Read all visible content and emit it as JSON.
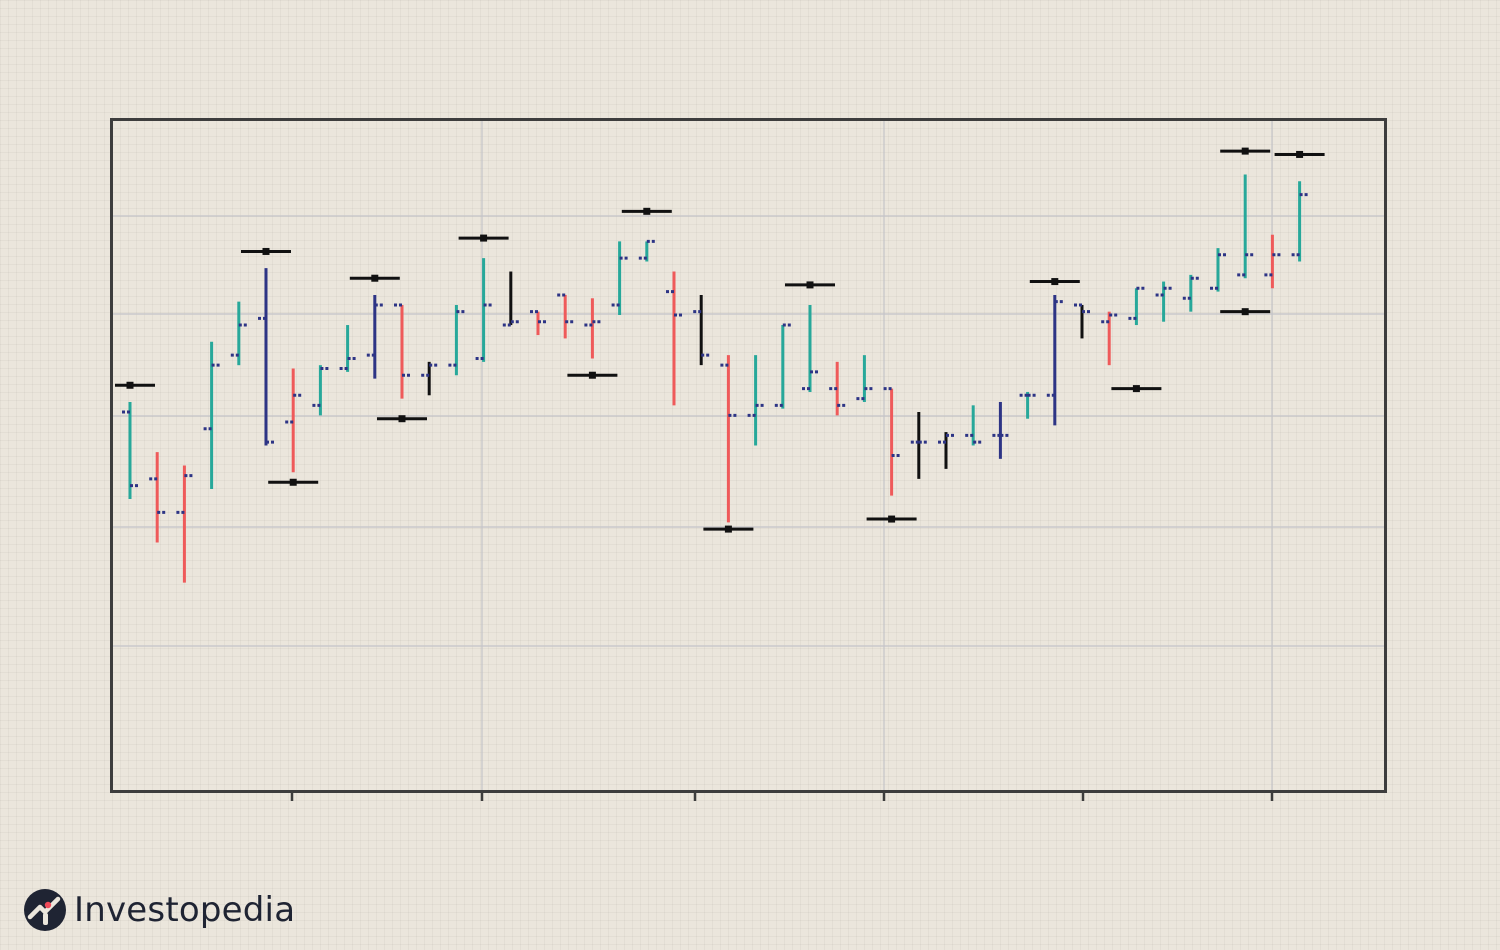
{
  "chart_data": {
    "type": "ohlc",
    "ylim": [
      0,
      100
    ],
    "grid": true,
    "axis_labels_shown": false,
    "colors": {
      "up": "#27a89a",
      "down": "#ef5a5a",
      "neutral": "#2d3485",
      "swing": "#111111",
      "grid": "#c4c4c8",
      "frame": "#3d3d3d"
    },
    "bars": [
      {
        "open": 56.5,
        "high": 58.0,
        "low": 43.5,
        "close": 45.5,
        "color": "up"
      },
      {
        "open": 46.5,
        "high": 50.5,
        "low": 37.0,
        "close": 41.5,
        "color": "down"
      },
      {
        "open": 41.5,
        "high": 48.5,
        "low": 31.0,
        "close": 47.0,
        "color": "down"
      },
      {
        "open": 54.0,
        "high": 67.0,
        "low": 45.0,
        "close": 63.5,
        "color": "up"
      },
      {
        "open": 65.0,
        "high": 73.0,
        "low": 63.5,
        "close": 69.5,
        "color": "up"
      },
      {
        "open": 70.5,
        "high": 78.0,
        "low": 51.5,
        "close": 52.0,
        "color": "neutral"
      },
      {
        "open": 55.0,
        "high": 63.0,
        "low": 47.5,
        "close": 59.0,
        "color": "down"
      },
      {
        "open": 57.5,
        "high": 63.5,
        "low": 56.0,
        "close": 63.0,
        "color": "up"
      },
      {
        "open": 63.0,
        "high": 69.5,
        "low": 62.5,
        "close": 64.5,
        "color": "up"
      },
      {
        "open": 65.0,
        "high": 74.0,
        "low": 61.5,
        "close": 72.5,
        "color": "neutral"
      },
      {
        "open": 72.5,
        "high": 72.5,
        "low": 58.5,
        "close": 62.0,
        "color": "down"
      },
      {
        "open": 62.0,
        "high": 64.0,
        "low": 59.0,
        "close": 63.5,
        "color": "swing"
      },
      {
        "open": 63.5,
        "high": 72.5,
        "low": 62.0,
        "close": 71.5,
        "color": "up"
      },
      {
        "open": 64.5,
        "high": 79.5,
        "low": 64.0,
        "close": 72.5,
        "color": "up"
      },
      {
        "open": 69.5,
        "high": 77.5,
        "low": 69.5,
        "close": 70.0,
        "color": "swing"
      },
      {
        "open": 71.5,
        "high": 71.5,
        "low": 68.0,
        "close": 70.0,
        "color": "down"
      },
      {
        "open": 74.0,
        "high": 74.0,
        "low": 67.5,
        "close": 70.0,
        "color": "down"
      },
      {
        "open": 69.5,
        "high": 73.5,
        "low": 64.5,
        "close": 70.0,
        "color": "down"
      },
      {
        "open": 72.5,
        "high": 82.0,
        "low": 71.0,
        "close": 79.5,
        "color": "up"
      },
      {
        "open": 79.5,
        "high": 82.0,
        "low": 79.0,
        "close": 82.0,
        "color": "up"
      },
      {
        "open": 74.5,
        "high": 77.5,
        "low": 57.5,
        "close": 71.0,
        "color": "down"
      },
      {
        "open": 71.5,
        "high": 74.0,
        "low": 63.5,
        "close": 65.0,
        "color": "swing"
      },
      {
        "open": 63.5,
        "high": 65.0,
        "low": 40.0,
        "close": 56.0,
        "color": "down"
      },
      {
        "open": 56.0,
        "high": 65.0,
        "low": 51.5,
        "close": 57.5,
        "color": "up"
      },
      {
        "open": 57.5,
        "high": 69.5,
        "low": 57.0,
        "close": 69.5,
        "color": "up"
      },
      {
        "open": 60.0,
        "high": 72.5,
        "low": 59.5,
        "close": 62.5,
        "color": "up"
      },
      {
        "open": 60.0,
        "high": 64.0,
        "low": 56.0,
        "close": 57.5,
        "color": "down"
      },
      {
        "open": 58.5,
        "high": 65.0,
        "low": 58.0,
        "close": 60.0,
        "color": "up"
      },
      {
        "open": 60.0,
        "high": 60.0,
        "low": 44.0,
        "close": 50.0,
        "color": "down"
      },
      {
        "open": 52.0,
        "high": 56.5,
        "low": 46.5,
        "close": 52.0,
        "color": "swing"
      },
      {
        "open": 52.0,
        "high": 53.5,
        "low": 48.0,
        "close": 53.0,
        "color": "swing"
      },
      {
        "open": 53.0,
        "high": 57.5,
        "low": 51.5,
        "close": 52.0,
        "color": "up"
      },
      {
        "open": 53.0,
        "high": 58.0,
        "low": 49.5,
        "close": 53.0,
        "color": "neutral"
      },
      {
        "open": 59.0,
        "high": 59.5,
        "low": 55.5,
        "close": 59.0,
        "color": "up"
      },
      {
        "open": 59.0,
        "high": 74.0,
        "low": 54.5,
        "close": 73.0,
        "color": "neutral"
      },
      {
        "open": 72.5,
        "high": 72.5,
        "low": 67.5,
        "close": 71.5,
        "color": "swing"
      },
      {
        "open": 70.0,
        "high": 71.5,
        "low": 63.5,
        "close": 71.0,
        "color": "down"
      },
      {
        "open": 70.5,
        "high": 75.0,
        "low": 69.5,
        "close": 75.0,
        "color": "up"
      },
      {
        "open": 74.0,
        "high": 76.0,
        "low": 70.0,
        "close": 75.0,
        "color": "up"
      },
      {
        "open": 73.5,
        "high": 77.0,
        "low": 71.5,
        "close": 76.5,
        "color": "up"
      },
      {
        "open": 75.0,
        "high": 81.0,
        "low": 74.5,
        "close": 80.0,
        "color": "up"
      },
      {
        "open": 77.0,
        "high": 92.0,
        "low": 76.5,
        "close": 80.0,
        "color": "up"
      },
      {
        "open": 77.0,
        "high": 83.0,
        "low": 75.0,
        "close": 80.0,
        "color": "down"
      },
      {
        "open": 80.0,
        "high": 91.0,
        "low": 79.0,
        "close": 89.0,
        "color": "up"
      }
    ],
    "swing_markers": [
      {
        "bar_index": 0,
        "value": 60.5
      },
      {
        "bar_index": 5,
        "value": 80.5
      },
      {
        "bar_index": 6,
        "value": 46.0
      },
      {
        "bar_index": 9,
        "value": 76.5
      },
      {
        "bar_index": 10,
        "value": 55.5
      },
      {
        "bar_index": 13,
        "value": 82.5
      },
      {
        "bar_index": 17,
        "value": 62.0
      },
      {
        "bar_index": 19,
        "value": 86.5
      },
      {
        "bar_index": 22,
        "value": 39.0
      },
      {
        "bar_index": 25,
        "value": 75.5
      },
      {
        "bar_index": 28,
        "value": 40.5
      },
      {
        "bar_index": 34,
        "value": 76.0
      },
      {
        "bar_index": 37,
        "value": 60.0
      },
      {
        "bar_index": 41,
        "value": 95.5
      },
      {
        "bar_index": 41,
        "value": 71.5
      },
      {
        "bar_index": 43,
        "value": 95.0
      }
    ]
  },
  "brand": {
    "name": "Investopedia"
  }
}
